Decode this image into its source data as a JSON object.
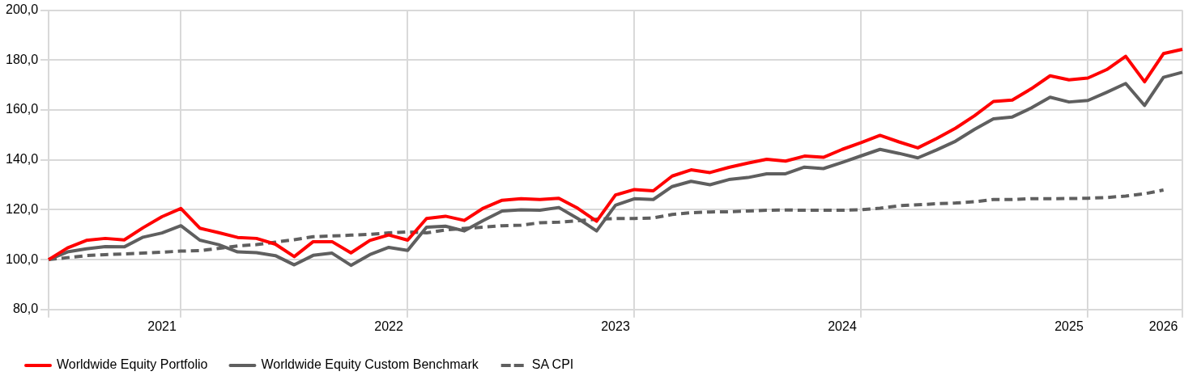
{
  "chart_data": {
    "type": "line",
    "categories": [
      null,
      null,
      null,
      null,
      null,
      null,
      "2021",
      null,
      null,
      null,
      null,
      null,
      null,
      null,
      null,
      null,
      null,
      null,
      "2022",
      null,
      null,
      null,
      null,
      null,
      null,
      null,
      null,
      null,
      null,
      null,
      "2023",
      null,
      null,
      null,
      null,
      null,
      null,
      null,
      null,
      null,
      null,
      null,
      "2024",
      null,
      null,
      null,
      null,
      null,
      null,
      null,
      null,
      null,
      null,
      null,
      "2025",
      null,
      null,
      null,
      null,
      "2026",
      null
    ],
    "series": [
      {
        "name": "Worldwide Equity Portfolio",
        "color": "#ff0000",
        "line_style": "solid",
        "values": [
          100,
          104.7,
          107.7,
          108.5,
          107.9,
          112.8,
          117.2,
          120.5,
          112.6,
          110.8,
          108.9,
          108.5,
          106.2,
          101.2,
          107.2,
          107.2,
          102.7,
          107.7,
          109.9,
          107.8,
          116.5,
          117.4,
          115.7,
          120.6,
          123.8,
          124.4,
          124.1,
          124.6,
          120.6,
          115.4,
          125.9,
          128.1,
          127.6,
          133.5,
          136,
          134.9,
          137,
          138.7,
          140.2,
          139.5,
          141.5,
          141,
          144.2,
          146.9,
          149.8,
          147.2,
          144.8,
          148.6,
          152.7,
          157.7,
          163.4,
          164,
          168.5,
          173.7,
          172.1,
          172.8,
          176.2,
          181.5,
          171.3,
          182.6,
          184.3
        ]
      },
      {
        "name": "Worldwide Equity Custom Benchmark",
        "color": "#5f5f5f",
        "line_style": "solid",
        "values": [
          100,
          103.1,
          104.3,
          105.2,
          105.1,
          109,
          110.7,
          113.6,
          107.8,
          106,
          103.1,
          102.8,
          101.6,
          97.9,
          101.7,
          102.6,
          97.7,
          102,
          104.9,
          103.7,
          113,
          113.4,
          111.5,
          115.7,
          119.5,
          120,
          119.8,
          120.9,
          116.5,
          111.5,
          121.8,
          124.4,
          124.1,
          129.3,
          131.4,
          130,
          132.1,
          132.9,
          134.4,
          134.4,
          137.1,
          136.5,
          139,
          141.6,
          144.2,
          142.6,
          140.8,
          144,
          147.5,
          152.2,
          156.4,
          157.2,
          160.8,
          165.1,
          163.2,
          163.8,
          167.1,
          170.6,
          161.8,
          173.1,
          175.1
        ]
      },
      {
        "name": "SA CPI",
        "color": "#5f5f5f",
        "line_style": "dashed",
        "values": [
          100,
          100.8,
          101.6,
          102,
          102.3,
          102.6,
          103,
          103.4,
          103.6,
          104.5,
          105.5,
          106,
          107,
          108,
          109.2,
          109.5,
          109.8,
          110.1,
          110.7,
          111.1,
          110.7,
          111.9,
          112.5,
          113,
          113.6,
          113.8,
          114.8,
          115,
          115.6,
          116.2,
          116.5,
          116.5,
          116.7,
          118.1,
          118.8,
          119.1,
          119.2,
          119.5,
          119.8,
          119.9,
          119.8,
          119.8,
          119.8,
          120,
          120.6,
          121.6,
          122,
          122.4,
          122.7,
          123.2,
          124.1,
          124.1,
          124.4,
          124.4,
          124.5,
          124.6,
          124.9,
          125.5,
          126.4,
          127.9,
          null
        ]
      }
    ],
    "ylim": [
      80,
      200
    ],
    "yticks": [
      {
        "value": 80,
        "label": "80,0"
      },
      {
        "value": 100,
        "label": "100,0"
      },
      {
        "value": 120,
        "label": "120,0"
      },
      {
        "value": 140,
        "label": "140,0"
      },
      {
        "value": 160,
        "label": "160,0"
      },
      {
        "value": 180,
        "label": "180,0"
      },
      {
        "value": 200,
        "label": "200,0"
      }
    ],
    "grid": true,
    "legend": "bottom",
    "marker": "none"
  }
}
